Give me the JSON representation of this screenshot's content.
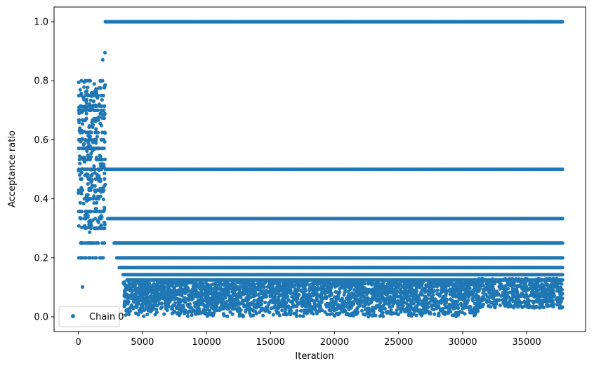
{
  "chart_data": {
    "type": "scatter",
    "xlabel": "Iteration",
    "ylabel": "Acceptance ratio",
    "xlim": [
      -1900,
      39600
    ],
    "ylim": [
      -0.05,
      1.05
    ],
    "xticks": [
      0,
      5000,
      10000,
      15000,
      20000,
      25000,
      30000,
      35000
    ],
    "xtick_labels": [
      "0",
      "5000",
      "10000",
      "15000",
      "20000",
      "25000",
      "30000",
      "35000"
    ],
    "yticks": [
      0.0,
      0.2,
      0.4,
      0.6,
      0.8,
      1.0
    ],
    "ytick_labels": [
      "0.0",
      "0.2",
      "0.4",
      "0.6",
      "0.8",
      "1.0"
    ],
    "grid": false,
    "legend_position": "lower-left",
    "color": "#1f77b4",
    "series": [
      {
        "name": "Chain 0",
        "description_points": {
          "x_range": [
            0,
            37800
          ],
          "burn_in_end": 2100,
          "burn_in_y_range": [
            0.07,
            0.93
          ],
          "level_lines": [
            {
              "y": 1.0,
              "x_range": [
                2100,
                37800
              ]
            },
            {
              "y": 0.5,
              "x_range": [
                2100,
                37800
              ]
            },
            {
              "y": 0.333,
              "x_range": [
                2300,
                37800
              ]
            },
            {
              "y": 0.25,
              "x_range": [
                2800,
                37800
              ]
            },
            {
              "y": 0.2,
              "x_range": [
                3000,
                37800
              ]
            },
            {
              "y": 0.167,
              "x_range": [
                3200,
                37800
              ]
            },
            {
              "y": 0.143,
              "x_range": [
                3500,
                37800
              ]
            },
            {
              "y": 0.125,
              "x_range": [
                3800,
                37800
              ]
            }
          ],
          "dense_band": {
            "x_range": [
              3500,
              31200
            ],
            "y_range": [
              0.0,
              0.12
            ]
          },
          "tail_band": {
            "x_range": [
              31200,
              37800
            ],
            "y_range": [
              0.03,
              0.13
            ]
          }
        }
      }
    ]
  }
}
